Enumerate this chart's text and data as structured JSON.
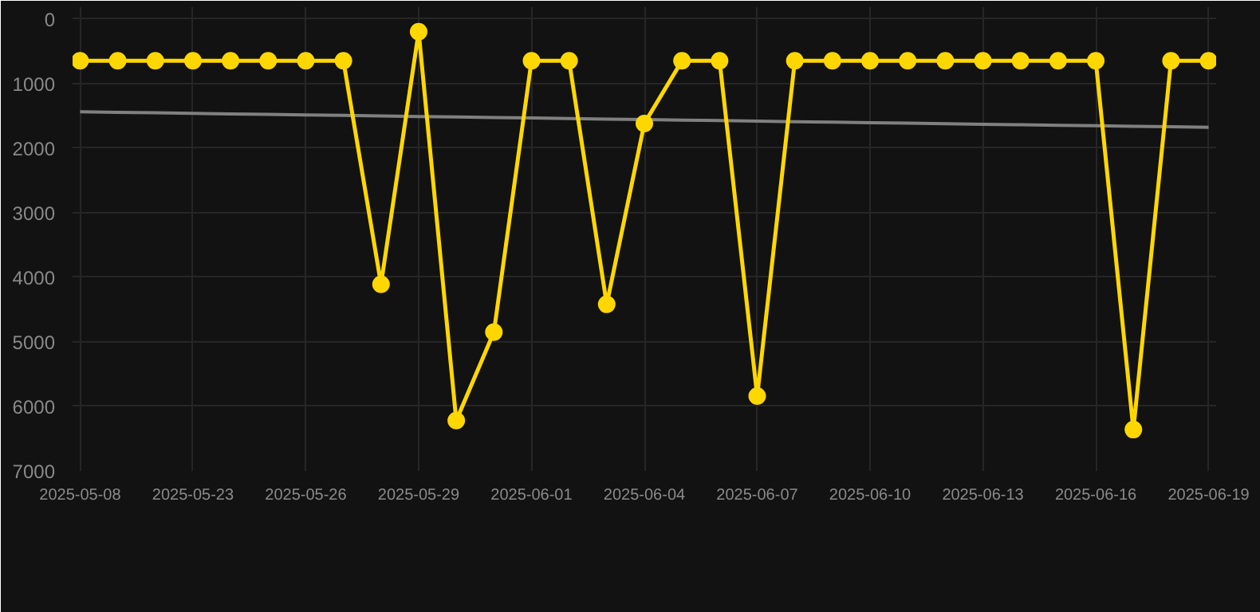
{
  "chart_data": {
    "type": "line",
    "categories": [
      "2025-05-08",
      null,
      null,
      "2025-05-23",
      null,
      null,
      "2025-05-26",
      null,
      null,
      "2025-05-29",
      null,
      null,
      "2025-06-01",
      null,
      null,
      "2025-06-04",
      null,
      null,
      "2025-06-07",
      null,
      null,
      "2025-06-10",
      null,
      null,
      "2025-06-13",
      null,
      null,
      "2025-06-16",
      null,
      null,
      "2025-06-19"
    ],
    "series": [
      {
        "color": "#ffd700",
        "marker": "circle",
        "values": [
          650,
          650,
          650,
          650,
          650,
          650,
          650,
          650,
          4110,
          200,
          6220,
          4850,
          650,
          650,
          4420,
          1620,
          650,
          650,
          5840,
          650,
          650,
          650,
          650,
          650,
          650,
          650,
          650,
          650,
          6360,
          650,
          650
        ]
      },
      {
        "color": "#808080",
        "marker": "none",
        "values": [
          1440,
          1448,
          1456,
          1464,
          1472,
          1480,
          1488,
          1496,
          1504,
          1512,
          1520,
          1528,
          1536,
          1544,
          1552,
          1560,
          1568,
          1576,
          1584,
          1592,
          1600,
          1608,
          1616,
          1624,
          1632,
          1640,
          1648,
          1656,
          1664,
          1672,
          1680
        ]
      }
    ],
    "ylim": [
      7000,
      -180
    ],
    "yticks": [
      0,
      1000,
      2000,
      3000,
      4000,
      5000,
      6000,
      7000
    ],
    "grid": true
  }
}
